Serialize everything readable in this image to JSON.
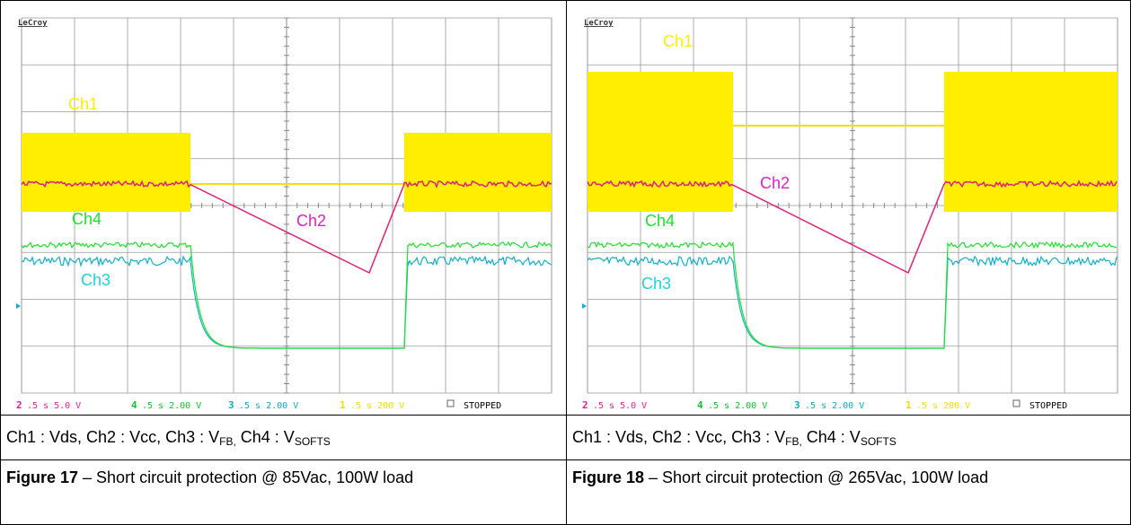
{
  "figures": [
    {
      "scope": {
        "brand": "LeCroy",
        "labels": [
          "Ch1",
          "Ch2",
          "Ch3",
          "Ch4"
        ],
        "status": [
          {
            "channel": "2",
            "setting": ".5 s 5.0 V"
          },
          {
            "channel": "4",
            "setting": ".5 s 2.00 V"
          },
          {
            "channel": "3",
            "setting": ".5 s 2.00 V"
          },
          {
            "channel": "1",
            "setting": ".5 s 200 V"
          }
        ],
        "state": "STOPPED"
      },
      "caption": {
        "main": "Ch1 : Vds, Ch2 : Vcc, Ch3 : V",
        "sub1": "FB,",
        "mid": " Ch4 : V",
        "sub2": "SOFTS"
      },
      "title": {
        "label": "Figure 17",
        "text": " – Short circuit protection @ 85Vac, 100W load"
      }
    },
    {
      "scope": {
        "brand": "LeCroy",
        "labels": [
          "Ch1",
          "Ch2",
          "Ch3",
          "Ch4"
        ],
        "status": [
          {
            "channel": "2",
            "setting": ".5 s 5.0 V"
          },
          {
            "channel": "4",
            "setting": ".5 s 2.00 V"
          },
          {
            "channel": "3",
            "setting": ".5 s 2.00 V"
          },
          {
            "channel": "1",
            "setting": ".5 s 200 V"
          }
        ],
        "state": "STOPPED"
      },
      "caption": {
        "main": "Ch1 : Vds, Ch2 : Vcc, Ch3 : V",
        "sub1": "FB,",
        "mid": " Ch4 : V",
        "sub2": "SOFTS"
      },
      "title": {
        "label": "Figure 18",
        "text": " – Short circuit protection @ 265Vac, 100W load"
      }
    }
  ]
}
